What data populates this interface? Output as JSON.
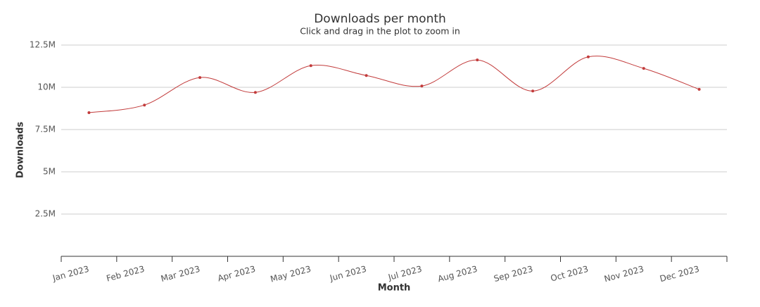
{
  "chart_data": {
    "type": "line",
    "title": "Downloads per month",
    "subtitle": "Click and drag in the plot to zoom in",
    "x_label": "Month",
    "y_label": "Downloads",
    "categories": [
      "Jan 2023",
      "Feb 2023",
      "Mar 2023",
      "Apr 2023",
      "May 2023",
      "Jun 2023",
      "Jul 2023",
      "Aug 2023",
      "Sep 2023",
      "Oct 2023",
      "Nov 2023",
      "Dec 2023"
    ],
    "series": [
      {
        "name": "Downloads",
        "color": "#c23b3b",
        "values": [
          8500000,
          8950000,
          10580000,
          9700000,
          11280000,
          10700000,
          10080000,
          11620000,
          9780000,
          11800000,
          11120000,
          9880000
        ]
      }
    ],
    "ylim": [
      0,
      12500000
    ],
    "yticks": [
      {
        "value": 2500000,
        "label": "2.5M"
      },
      {
        "value": 5000000,
        "label": "5M"
      },
      {
        "value": 7500000,
        "label": "7.5M"
      },
      {
        "value": 10000000,
        "label": "10M"
      },
      {
        "value": 12500000,
        "label": "12.5M"
      }
    ],
    "grid": true
  }
}
